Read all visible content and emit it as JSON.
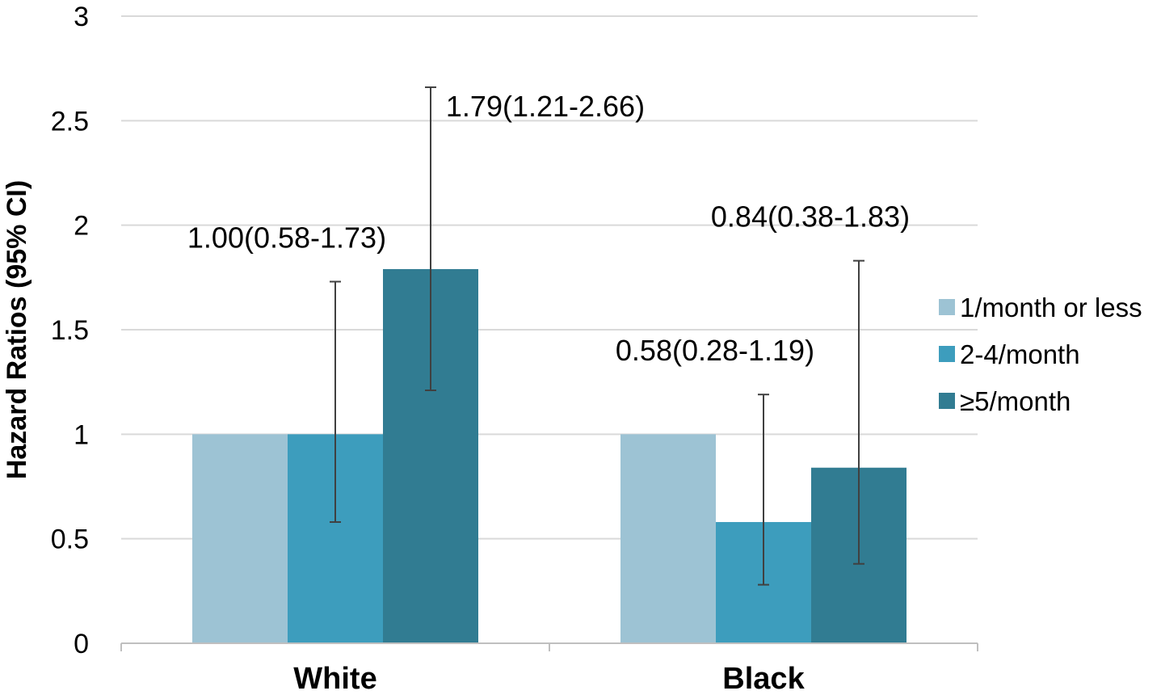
{
  "chart_data": {
    "type": "bar",
    "title": "",
    "xlabel": "",
    "ylabel": "Hazard Ratios (95% CI)",
    "ylim": [
      0,
      3
    ],
    "yticks": [
      "0",
      "0.5",
      "1",
      "1.5",
      "2",
      "2.5",
      "3"
    ],
    "grid": true,
    "legend_position": "right",
    "categories": [
      "White",
      "Black"
    ],
    "series": [
      {
        "name": "1/month or less",
        "color": "#9dc3d4",
        "values": [
          1.0,
          1.0
        ],
        "ci_low": [
          null,
          null
        ],
        "ci_high": [
          null,
          null
        ],
        "labels": [
          "",
          ""
        ]
      },
      {
        "name": "2-4/month",
        "color": "#3d9dbd",
        "values": [
          1.0,
          0.58
        ],
        "ci_low": [
          0.58,
          0.28
        ],
        "ci_high": [
          1.73,
          1.19
        ],
        "labels": [
          "1.00(0.58-1.73)",
          "0.58(0.28-1.19)"
        ]
      },
      {
        "name": "≥5/month",
        "color": "#317c92",
        "values": [
          1.79,
          0.84
        ],
        "ci_low": [
          1.21,
          0.38
        ],
        "ci_high": [
          2.66,
          1.83
        ],
        "labels": [
          "1.79(1.21-2.66)",
          "0.84(0.38-1.83)"
        ]
      }
    ]
  }
}
